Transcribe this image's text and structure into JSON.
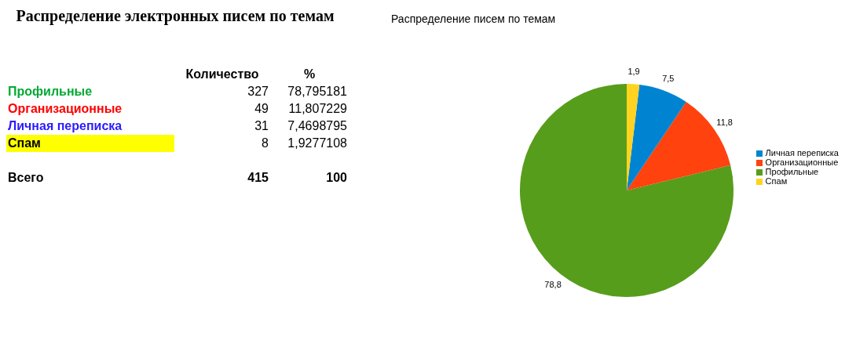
{
  "chart_data": [
    {
      "type": "other",
      "title": "Распределение электронных писем по темам",
      "annotations": [
        "Количество",
        "%",
        "Профильные",
        "327",
        "78,795181",
        "Организационные",
        "49",
        "11,807229",
        "Личная переписка",
        "31",
        "7,4698795",
        "Спам",
        "8",
        "1,9277108",
        "Всего",
        "415",
        "100"
      ]
    },
    {
      "type": "pie",
      "title": "Распределение писем по темам",
      "categories": [
        "Профильные",
        "Организационные",
        "Личная переписка",
        "Спам"
      ],
      "values": [
        78.8,
        11.8,
        7.5,
        1.9
      ],
      "colors": [
        "#579d1c",
        "#ff420e",
        "#0084d1",
        "#ffd320"
      ],
      "value_labels": [
        "78,8",
        "11,8",
        "7,5",
        "1,9"
      ],
      "legend": "right"
    }
  ]
}
